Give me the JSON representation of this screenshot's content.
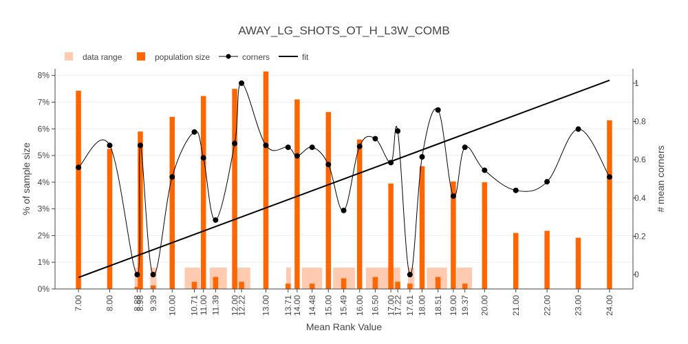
{
  "chart_data": {
    "type": "bar",
    "title": "AWAY_LG_SHOTS_OT_H_L3W_COMB",
    "xlabel": "Mean Rank Value",
    "ylabel": "% of sample size",
    "y2label": "# mean corners",
    "legend_placement": "top-left",
    "xlim": [
      6.25,
      24.75
    ],
    "ylim": [
      0,
      8.25
    ],
    "y2lim": [
      -0.075,
      1.075
    ],
    "grid": true,
    "x_ticks": [
      7.0,
      8.0,
      8.88,
      8.98,
      9.39,
      10.0,
      10.71,
      11.0,
      11.39,
      12.0,
      12.22,
      13.0,
      13.71,
      14.0,
      14.48,
      15.0,
      15.49,
      16.0,
      16.5,
      17.0,
      17.22,
      17.61,
      18.0,
      18.51,
      19.0,
      19.37,
      20.0,
      21.0,
      22.0,
      23.0,
      24.0
    ],
    "x_tick_labels": [
      "7.00",
      "8.00",
      "8.88",
      "8.98",
      "9.39",
      "10.00",
      "10.71",
      "11.00",
      "11.39",
      "12.00",
      "12.22",
      "13.00",
      "13.71",
      "14.00",
      "14.48",
      "15.00",
      "15.49",
      "16.00",
      "16.50",
      "17.00",
      "17.22",
      "17.61",
      "18.00",
      "18.51",
      "19.00",
      "19.37",
      "20.00",
      "21.00",
      "22.00",
      "23.00",
      "24.00"
    ],
    "y_ticks": [
      0,
      1,
      2,
      3,
      4,
      5,
      6,
      7,
      8
    ],
    "y_tick_labels": [
      "0%",
      "1%",
      "2%",
      "3%",
      "4%",
      "5%",
      "6%",
      "7%",
      "8%"
    ],
    "y2_ticks": [
      0,
      0.2,
      0.4,
      0.6,
      0.8,
      1
    ],
    "y2_tick_labels": [
      "0",
      "0.2",
      "0.4",
      "0.6",
      "0.8",
      "1"
    ],
    "colors": {
      "data_range": "#ffcbb0",
      "population": "#ff6600",
      "corners": "#000000",
      "fit": "#000000",
      "grid": "#eeeeee",
      "axis": "#444444"
    },
    "legend": [
      {
        "key": "data_range",
        "label": "data range"
      },
      {
        "key": "population",
        "label": "population size"
      },
      {
        "key": "corners",
        "label": "corners"
      },
      {
        "key": "fit",
        "label": "fit"
      }
    ],
    "data_range": [
      {
        "x0": 8.8,
        "x1": 9.0,
        "value": 0.8
      },
      {
        "x0": 9.3,
        "x1": 9.5,
        "value": 0.8
      },
      {
        "x0": 10.4,
        "x1": 10.9,
        "value": 0.8
      },
      {
        "x0": 11.2,
        "x1": 11.75,
        "value": 0.8
      },
      {
        "x0": 12.0,
        "x1": 12.5,
        "value": 0.8
      },
      {
        "x0": 13.65,
        "x1": 13.8,
        "value": 0.8
      },
      {
        "x0": 14.15,
        "x1": 14.8,
        "value": 0.8
      },
      {
        "x0": 15.15,
        "x1": 15.85,
        "value": 0.8
      },
      {
        "x0": 16.2,
        "x1": 16.95,
        "value": 0.8
      },
      {
        "x0": 17.05,
        "x1": 17.3,
        "value": 0.8
      },
      {
        "x0": 17.55,
        "x1": 17.75,
        "value": 0.8
      },
      {
        "x0": 18.15,
        "x1": 18.8,
        "value": 0.8
      },
      {
        "x0": 19.1,
        "x1": 19.6,
        "value": 0.8
      }
    ],
    "population_size": {
      "x": [
        7.0,
        8.0,
        8.88,
        8.98,
        9.39,
        10.0,
        10.71,
        11.0,
        11.39,
        12.0,
        12.22,
        13.0,
        13.71,
        14.0,
        14.48,
        15.0,
        15.49,
        16.0,
        16.5,
        17.0,
        17.22,
        17.61,
        18.0,
        18.51,
        19.0,
        19.37,
        20.0,
        21.0,
        22.0,
        23.0,
        24.0
      ],
      "values": [
        7.43,
        5.25,
        0.08,
        5.9,
        0.13,
        6.45,
        0.27,
        7.23,
        0.45,
        7.5,
        0.27,
        8.15,
        0.2,
        7.1,
        0.2,
        6.63,
        0.4,
        5.6,
        0.45,
        3.95,
        0.27,
        0.2,
        4.6,
        0.45,
        4.03,
        0.2,
        4.0,
        2.1,
        2.18,
        1.92,
        6.32
      ]
    },
    "corners": {
      "x": [
        7.0,
        8.0,
        8.88,
        8.98,
        9.39,
        10.0,
        10.71,
        11.0,
        11.39,
        12.0,
        12.22,
        13.0,
        13.71,
        14.0,
        14.48,
        15.0,
        15.49,
        16.0,
        16.5,
        17.0,
        17.22,
        17.61,
        18.0,
        18.51,
        19.0,
        19.37,
        20.0,
        21.0,
        22.0,
        23.0,
        24.0
      ],
      "y": [
        0.56,
        0.675,
        0.0,
        0.675,
        0.0,
        0.51,
        0.745,
        0.61,
        0.285,
        0.685,
        1.0,
        0.675,
        0.665,
        0.62,
        0.665,
        0.575,
        0.335,
        0.67,
        0.71,
        0.585,
        0.75,
        0.0,
        0.615,
        0.86,
        0.41,
        0.665,
        0.545,
        0.44,
        0.485,
        0.76,
        0.51
      ]
    },
    "fit": {
      "x": [
        7.0,
        24.0
      ],
      "y": [
        -0.015,
        1.015
      ]
    }
  }
}
